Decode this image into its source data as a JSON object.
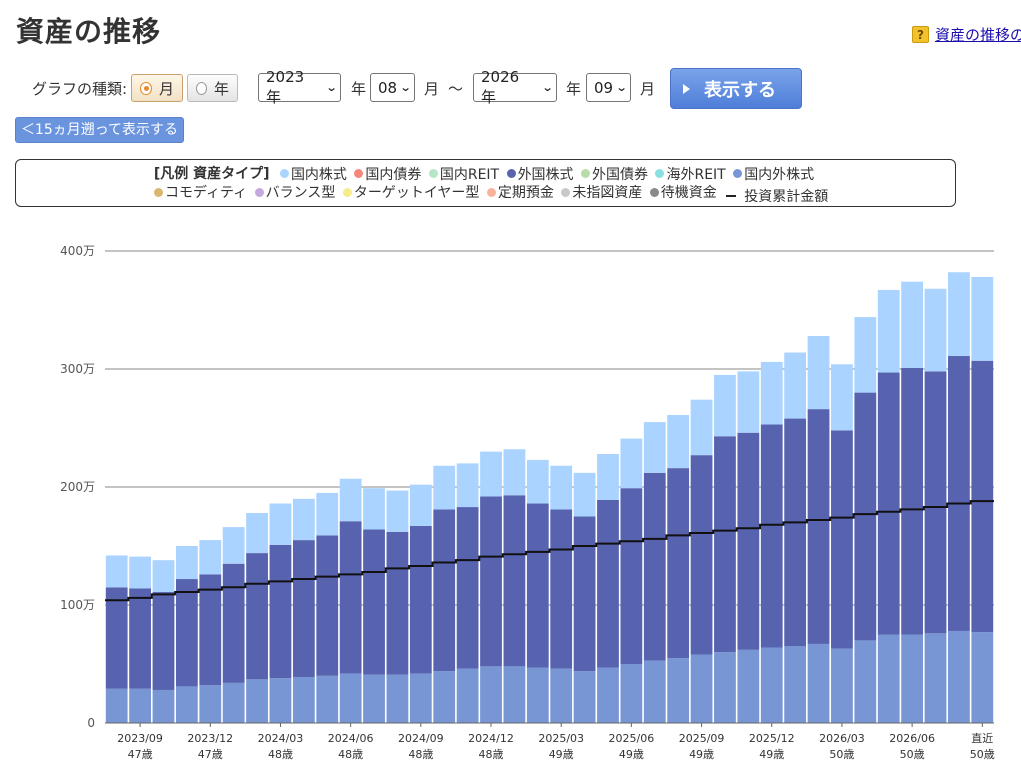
{
  "title": "資産の推移",
  "help_link": "資産の推移の",
  "controls": {
    "graph_type_label": "グラフの種類:",
    "radio_month": "月",
    "radio_year": "年",
    "from_year": "2023 年",
    "year_suffix_1": "年",
    "from_month": "08",
    "month_suffix_1": "月",
    "range_sep": "～",
    "to_year": "2026 年",
    "year_suffix_2": "年",
    "to_month": "09",
    "month_suffix_2": "月",
    "show_button": "表示する",
    "back_button": "＜15ヵ月遡って表示する"
  },
  "legend": {
    "title": "[凡例 資産タイプ]",
    "items": [
      {
        "label": "国内株式",
        "color": "#aad4ff"
      },
      {
        "label": "国内債券",
        "color": "#f4877a"
      },
      {
        "label": "国内REIT",
        "color": "#b6e6c6"
      },
      {
        "label": "外国株式",
        "color": "#5863b0"
      },
      {
        "label": "外国債券",
        "color": "#b8dca8"
      },
      {
        "label": "海外REIT",
        "color": "#8adfe0"
      },
      {
        "label": "国内外株式",
        "color": "#7896d4"
      },
      {
        "label": "コモディティ",
        "color": "#d8b870"
      },
      {
        "label": "バランス型",
        "color": "#c4a8e0"
      },
      {
        "label": "ターゲットイヤー型",
        "color": "#f6ec8a"
      },
      {
        "label": "定期預金",
        "color": "#f8b49a"
      },
      {
        "label": "未指図資産",
        "color": "#c8c8c8"
      },
      {
        "label": "待機資金",
        "color": "#8a8a8a"
      }
    ],
    "line_label": "投資累計金額"
  },
  "chart_data": {
    "type": "bar",
    "stacked": true,
    "ylim": [
      0,
      4000000
    ],
    "yticks": [
      {
        "value": 0,
        "label": "0"
      },
      {
        "value": 1000000,
        "label": "100万"
      },
      {
        "value": 2000000,
        "label": "200万"
      },
      {
        "value": 3000000,
        "label": "300万"
      },
      {
        "value": 4000000,
        "label": "400万"
      }
    ],
    "categories": [
      "2023/08",
      "2023/09",
      "2023/10",
      "2023/11",
      "2023/12",
      "2024/01",
      "2024/02",
      "2024/03",
      "2024/04",
      "2024/05",
      "2024/06",
      "2024/07",
      "2024/08",
      "2024/09",
      "2024/10",
      "2024/11",
      "2024/12",
      "2025/01",
      "2025/02",
      "2025/03",
      "2025/04",
      "2025/05",
      "2025/06",
      "2025/07",
      "2025/08",
      "2025/09",
      "2025/10",
      "2025/11",
      "2025/12",
      "2026/01",
      "2026/02",
      "2026/03",
      "2026/04",
      "2026/05",
      "2026/06",
      "2026/07",
      "2026/08",
      "直近"
    ],
    "x_tick_labels": [
      {
        "index": 1,
        "date": "2023/09",
        "age": "47歳"
      },
      {
        "index": 4,
        "date": "2023/12",
        "age": "47歳"
      },
      {
        "index": 7,
        "date": "2024/03",
        "age": "48歳"
      },
      {
        "index": 10,
        "date": "2024/06",
        "age": "48歳"
      },
      {
        "index": 13,
        "date": "2024/09",
        "age": "48歳"
      },
      {
        "index": 16,
        "date": "2024/12",
        "age": "48歳"
      },
      {
        "index": 19,
        "date": "2025/03",
        "age": "49歳"
      },
      {
        "index": 22,
        "date": "2025/06",
        "age": "49歳"
      },
      {
        "index": 25,
        "date": "2025/09",
        "age": "49歳"
      },
      {
        "index": 28,
        "date": "2025/12",
        "age": "49歳"
      },
      {
        "index": 31,
        "date": "2026/03",
        "age": "50歳"
      },
      {
        "index": 34,
        "date": "2026/06",
        "age": "50歳"
      },
      {
        "index": 37,
        "date": "直近",
        "age": "50歳"
      }
    ],
    "series": [
      {
        "name": "国内外株式",
        "color": "#7896d4",
        "values": [
          290000,
          290000,
          280000,
          310000,
          320000,
          340000,
          370000,
          380000,
          390000,
          400000,
          420000,
          410000,
          410000,
          420000,
          440000,
          460000,
          480000,
          480000,
          470000,
          460000,
          440000,
          470000,
          500000,
          530000,
          550000,
          580000,
          600000,
          620000,
          640000,
          650000,
          670000,
          630000,
          700000,
          750000,
          750000,
          760000,
          780000,
          770000
        ]
      },
      {
        "name": "外国株式",
        "color": "#5863b0",
        "values": [
          860000,
          850000,
          830000,
          910000,
          940000,
          1010000,
          1070000,
          1130000,
          1160000,
          1190000,
          1290000,
          1230000,
          1210000,
          1250000,
          1370000,
          1370000,
          1440000,
          1450000,
          1390000,
          1350000,
          1310000,
          1420000,
          1490000,
          1590000,
          1610000,
          1690000,
          1830000,
          1840000,
          1890000,
          1930000,
          1990000,
          1850000,
          2100000,
          2220000,
          2260000,
          2220000,
          2330000,
          2300000
        ]
      },
      {
        "name": "国内株式",
        "color": "#aad4ff",
        "values": [
          270000,
          270000,
          270000,
          280000,
          290000,
          310000,
          340000,
          350000,
          350000,
          360000,
          360000,
          350000,
          350000,
          350000,
          370000,
          370000,
          380000,
          390000,
          370000,
          370000,
          370000,
          390000,
          420000,
          430000,
          450000,
          470000,
          520000,
          520000,
          530000,
          560000,
          620000,
          560000,
          640000,
          700000,
          730000,
          700000,
          710000,
          710000
        ]
      }
    ],
    "line": {
      "name": "投資累計金額",
      "color": "#111111",
      "values": [
        1040000,
        1060000,
        1090000,
        1110000,
        1130000,
        1150000,
        1180000,
        1200000,
        1220000,
        1240000,
        1260000,
        1280000,
        1310000,
        1330000,
        1360000,
        1380000,
        1410000,
        1430000,
        1450000,
        1470000,
        1500000,
        1520000,
        1540000,
        1560000,
        1590000,
        1610000,
        1630000,
        1650000,
        1680000,
        1700000,
        1720000,
        1740000,
        1770000,
        1790000,
        1810000,
        1830000,
        1860000,
        1880000
      ]
    }
  }
}
